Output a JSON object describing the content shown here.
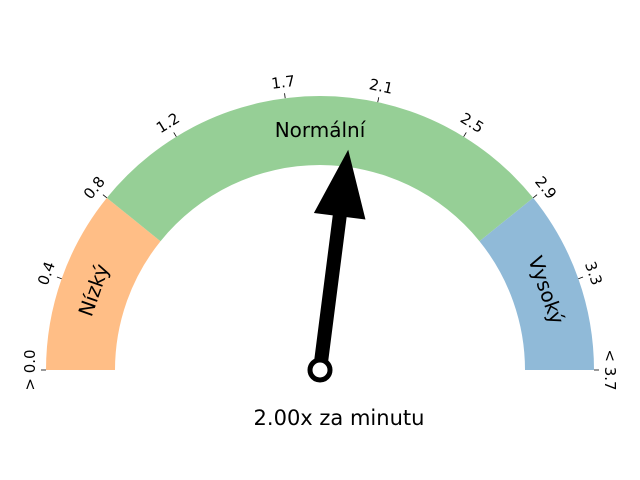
{
  "chart_data": {
    "type": "gauge",
    "min": 0.0,
    "max": 3.7,
    "value": 2.0,
    "value_label": "2.00x za minutu",
    "ticks": [
      {
        "value": 0.0,
        "label": "> 0.0"
      },
      {
        "value": 0.4,
        "label": "0.4"
      },
      {
        "value": 0.8,
        "label": "0.8"
      },
      {
        "value": 1.2,
        "label": "1.2"
      },
      {
        "value": 1.7,
        "label": "1.7"
      },
      {
        "value": 2.1,
        "label": "2.1"
      },
      {
        "value": 2.5,
        "label": "2.5"
      },
      {
        "value": 2.9,
        "label": "2.9"
      },
      {
        "value": 3.3,
        "label": "3.3"
      },
      {
        "value": 3.7,
        "label": "< 3.7"
      }
    ],
    "bands": [
      {
        "name": "Nízký",
        "from": 0.0,
        "to": 0.8,
        "color": "#ffbe86"
      },
      {
        "name": "Normální",
        "from": 0.8,
        "to": 2.9,
        "color": "#96cf96"
      },
      {
        "name": "Vysoký",
        "from": 2.9,
        "to": 3.7,
        "color": "#90bad8"
      }
    ]
  }
}
